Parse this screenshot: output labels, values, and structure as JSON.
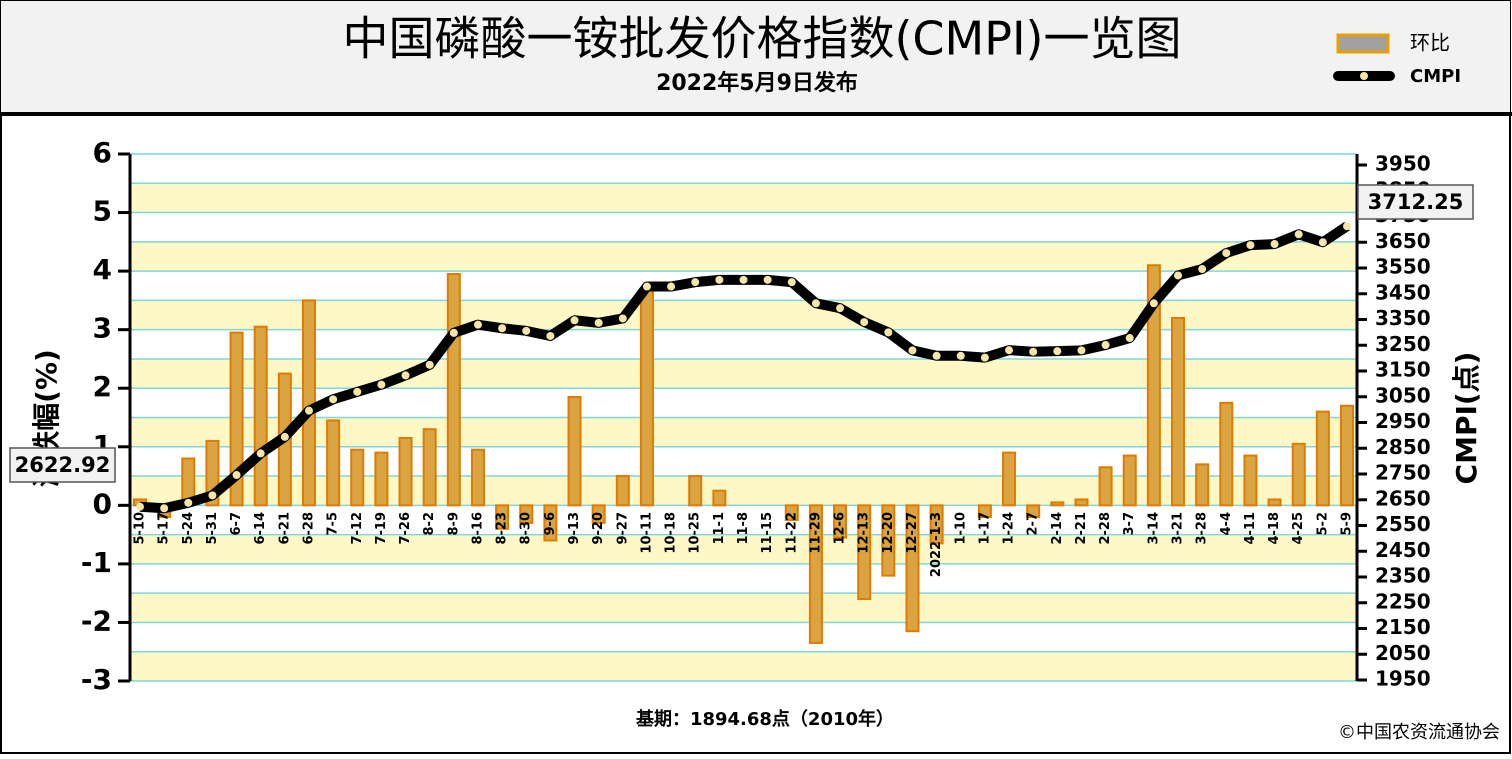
{
  "chart_data": {
    "type": "bar_line",
    "title": "中国磷酸一铵批发价格指数(CMPI)一览图",
    "subtitle": "2022年5月9日发布",
    "ylabel": "涨跌幅(%)",
    "y2label": "CMPI(点)",
    "footnote": "基期：1894.68点（2010年）",
    "source": "©中国农资流通协会",
    "categories": [
      "5-10",
      "5-17",
      "5-24",
      "5-31",
      "6-7",
      "6-14",
      "6-21",
      "6-28",
      "7-5",
      "7-12",
      "7-19",
      "7-26",
      "8-2",
      "8-9",
      "8-16",
      "8-23",
      "8-30",
      "9-6",
      "9-13",
      "9-20",
      "9-27",
      "10-11",
      "10-18",
      "10-25",
      "11-1",
      "11-8",
      "11-15",
      "11-22",
      "11-29",
      "12-6",
      "12-13",
      "12-20",
      "12-27",
      "2022-1-3",
      "1-10",
      "1-17",
      "1-24",
      "2-7",
      "2-14",
      "2-21",
      "2-28",
      "3-7",
      "3-14",
      "3-21",
      "3-28",
      "4-4",
      "4-11",
      "4-18",
      "4-25",
      "5-2",
      "5-9"
    ],
    "series": [
      {
        "name": "环比",
        "color": "#d9a441",
        "axis": "y",
        "values": [
          0.1,
          -0.2,
          0.8,
          1.1,
          2.95,
          3.05,
          2.25,
          3.5,
          1.45,
          0.95,
          0.9,
          1.15,
          1.3,
          3.95,
          0.95,
          -0.4,
          -0.3,
          -0.6,
          1.85,
          -0.3,
          0.5,
          3.7,
          0,
          0.5,
          0.25,
          0,
          0,
          -0.25,
          -2.35,
          -0.55,
          -1.6,
          -1.2,
          -2.15,
          -0.65,
          0,
          -0.2,
          0.9,
          -0.2,
          0.05,
          0.1,
          0.65,
          0.85,
          4.1,
          3.2,
          0.7,
          1.75,
          0.85,
          0.1,
          1.05,
          1.6,
          1.7
        ]
      },
      {
        "name": "CMPI",
        "color": "#000000",
        "axis": "y2",
        "values": [
          2622.92,
          2617,
          2638,
          2667,
          2746,
          2830,
          2894,
          2996,
          3040,
          3069,
          3097,
          3133,
          3174,
          3298,
          3330,
          3316,
          3306,
          3286,
          3347,
          3337,
          3354,
          3478,
          3478,
          3495,
          3504,
          3504,
          3504,
          3495,
          3413,
          3394,
          3340,
          3300,
          3230,
          3209,
          3209,
          3202,
          3231,
          3225,
          3227,
          3230,
          3251,
          3278,
          3413,
          3521,
          3546,
          3608,
          3639,
          3643,
          3681,
          3650,
          3712.25
        ]
      }
    ],
    "ylim": [
      -3,
      6
    ],
    "yticks": [
      -3,
      -2,
      -1,
      0,
      1,
      2,
      3,
      4,
      5,
      6
    ],
    "y2lim": [
      1950,
      3950
    ],
    "y2ticks": [
      1950,
      2050,
      2150,
      2250,
      2350,
      2450,
      2550,
      2650,
      2750,
      2850,
      2950,
      3050,
      3150,
      3250,
      3350,
      3450,
      3550,
      3650,
      3750,
      3850,
      3950
    ],
    "grid": true
  }
}
